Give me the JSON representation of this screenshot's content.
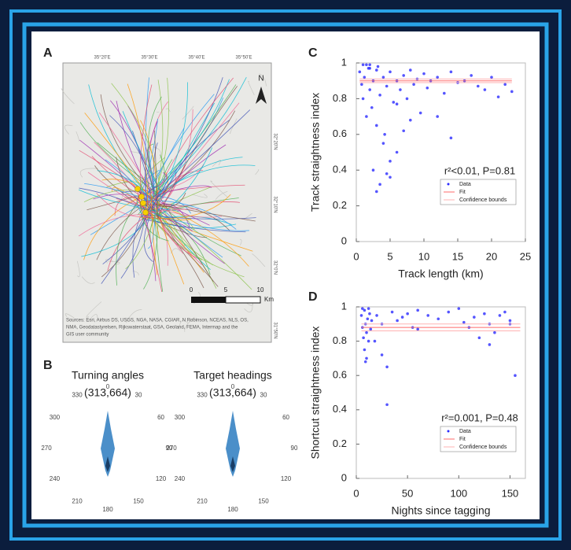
{
  "labels": [
    "A",
    "B"
  ],
  "map": {
    "north": "N",
    "top_coords": [
      "35°20'E",
      "35°30'E",
      "35°40'E",
      "35°50'E"
    ],
    "right_coords": [
      "32°20'N",
      "32°10'N",
      "32°0'N",
      "31°50'N"
    ],
    "scale": [
      "0",
      "5",
      "10"
    ],
    "scale_unit": "Km",
    "attribution": [
      "Sources: Esri, Airbus DS, USGS, NGA, NASA, CGIAR, N Robinson, NCEAS, NLS, OS,",
      "NMA, Geodatastyrelsen, Rijkswaterstaat, GSA, Geoland, FEMA, Intermap and the",
      "GIS user community"
    ]
  },
  "roses": [
    {
      "title": "Turning angles",
      "count": "(313,664)",
      "angles": [
        0,
        30,
        60,
        90,
        120,
        150,
        180,
        210,
        240,
        270,
        300,
        330
      ]
    },
    {
      "title": "Target headings",
      "count": "(313,664)",
      "angles": [
        0,
        30,
        60,
        90,
        120,
        150,
        180,
        210,
        240,
        270,
        300,
        330
      ]
    }
  ],
  "chart_data": [
    {
      "type": "scatter",
      "panel": "C",
      "xlabel": "Track length (km)",
      "ylabel": "Track straightness index",
      "annotation": "r²<0.01, P=0.81",
      "xlim": [
        0,
        25
      ],
      "xticks": [
        0,
        5,
        10,
        15,
        20,
        25
      ],
      "ylim": [
        0,
        1
      ],
      "yticks": [
        0,
        0.2,
        0.4,
        0.6,
        0.8,
        1
      ],
      "series": [
        {
          "name": "Data",
          "color": "#2b2bff",
          "x": [
            0.5,
            0.8,
            1,
            1.2,
            1.5,
            1.8,
            2,
            2.3,
            2.5,
            3,
            3.2,
            3.5,
            4,
            4.2,
            4.5,
            5,
            5.5,
            6,
            6.5,
            7,
            7.5,
            8,
            8.5,
            9,
            9.5,
            10,
            10.5,
            11,
            12,
            13,
            14,
            15,
            16,
            17,
            18,
            19,
            20,
            21,
            22,
            23,
            1,
            2,
            3,
            4,
            5,
            6,
            2.5,
            3.5,
            4.5,
            7,
            8,
            12,
            14,
            3,
            5,
            1.5,
            2,
            6
          ],
          "values": [
            0.95,
            0.88,
            0.8,
            0.92,
            0.7,
            0.97,
            0.85,
            0.75,
            0.9,
            0.65,
            0.98,
            0.82,
            0.92,
            0.6,
            0.87,
            0.95,
            0.78,
            0.9,
            0.85,
            0.93,
            0.8,
            0.96,
            0.88,
            0.91,
            0.72,
            0.94,
            0.86,
            0.9,
            0.92,
            0.83,
            0.95,
            0.89,
            0.9,
            0.93,
            0.87,
            0.85,
            0.92,
            0.81,
            0.88,
            0.84,
            0.99,
            0.99,
            0.96,
            0.55,
            0.45,
            0.5,
            0.4,
            0.32,
            0.38,
            0.62,
            0.68,
            0.7,
            0.58,
            0.28,
            0.36,
            0.99,
            0.97,
            0.77
          ]
        },
        {
          "name": "Fit",
          "color": "#ff6b6b",
          "x": [
            0.5,
            23
          ],
          "values": [
            0.9,
            0.9
          ]
        },
        {
          "name": "Confidence bounds",
          "color": "#ffb3b3",
          "x": [
            0.5,
            23
          ],
          "values": [
            0.91,
            0.91
          ],
          "lower": [
            0.89,
            0.89
          ]
        }
      ]
    },
    {
      "type": "scatter",
      "panel": "D",
      "xlabel": "Nights since tagging",
      "ylabel": "Shortcut straightness index",
      "annotation": "r²=0.001, P=0.48",
      "xlim": [
        0,
        165
      ],
      "xticks": [
        0,
        50,
        100,
        150
      ],
      "ylim": [
        0,
        1
      ],
      "yticks": [
        0,
        0.2,
        0.4,
        0.6,
        0.8,
        1
      ],
      "series": [
        {
          "name": "Data",
          "color": "#2b2bff",
          "x": [
            5,
            6,
            7,
            8,
            9,
            10,
            11,
            12,
            13,
            14,
            15,
            8,
            10,
            12,
            6,
            9,
            20,
            25,
            30,
            35,
            40,
            45,
            50,
            55,
            60,
            70,
            80,
            90,
            100,
            105,
            110,
            115,
            120,
            125,
            130,
            135,
            140,
            145,
            150,
            155,
            30,
            25,
            18,
            150,
            60,
            130
          ],
          "values": [
            0.95,
            0.88,
            0.82,
            0.98,
            0.9,
            0.85,
            0.93,
            0.8,
            0.96,
            0.87,
            0.92,
            0.75,
            0.7,
            0.99,
            0.99,
            0.68,
            0.95,
            0.9,
            0.43,
            0.97,
            0.92,
            0.94,
            0.96,
            0.88,
            0.98,
            0.95,
            0.93,
            0.97,
            0.99,
            0.91,
            0.88,
            0.94,
            0.82,
            0.96,
            0.9,
            0.85,
            0.95,
            0.97,
            0.9,
            0.6,
            0.65,
            0.72,
            0.8,
            0.92,
            0.87,
            0.78
          ]
        },
        {
          "name": "Fit",
          "color": "#ff6b6b",
          "x": [
            5,
            160
          ],
          "values": [
            0.88,
            0.88
          ]
        },
        {
          "name": "Confidence bounds",
          "color": "#ffb3b3",
          "x": [
            5,
            160
          ],
          "values": [
            0.9,
            0.9
          ],
          "lower": [
            0.86,
            0.86
          ]
        }
      ]
    }
  ]
}
